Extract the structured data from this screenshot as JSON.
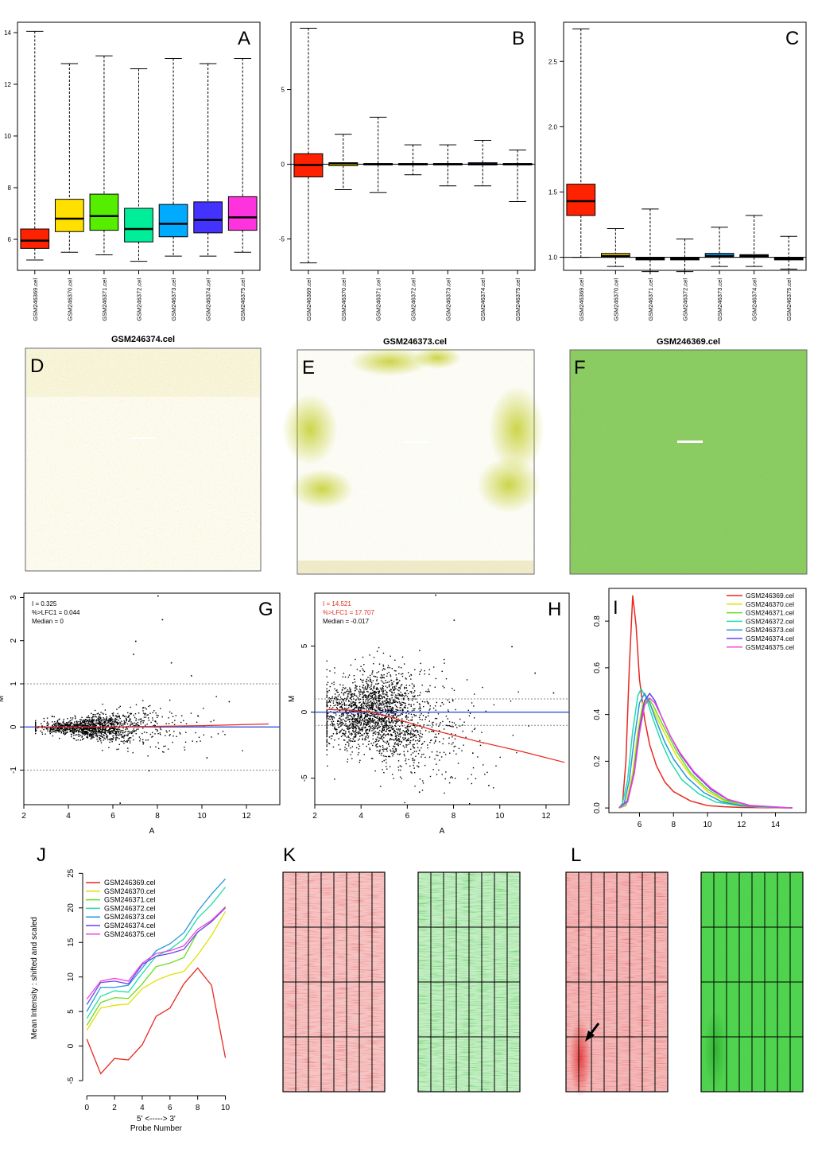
{
  "samples": [
    "GSM246369.cel",
    "GSM246370.cel",
    "GSM246371.cel",
    "GSM246372.cel",
    "GSM246373.cel",
    "GSM246374.cel",
    "GSM246375.cel"
  ],
  "colors": {
    "box": [
      "#ff2200",
      "#ffe000",
      "#55ee00",
      "#00ee99",
      "#00aaff",
      "#4433ff",
      "#ff33dd"
    ],
    "density": [
      "#e8281e",
      "#e0e000",
      "#66dd22",
      "#22ddaa",
      "#2299dd",
      "#6644ee",
      "#ee44dd"
    ],
    "axis": "#000000",
    "lowess": "#e8281e",
    "ref_line": "#2244dd"
  },
  "chart_data": [
    {
      "panel": "A",
      "type": "box",
      "ylim": [
        4.8,
        14.4
      ],
      "yticks": [
        6,
        8,
        10,
        12,
        14
      ],
      "boxes": [
        {
          "min": 5.2,
          "q1": 5.65,
          "median": 5.95,
          "q3": 6.4,
          "max": 14.05
        },
        {
          "min": 5.5,
          "q1": 6.3,
          "median": 6.8,
          "q3": 7.55,
          "max": 12.8
        },
        {
          "min": 5.4,
          "q1": 6.35,
          "median": 6.9,
          "q3": 7.75,
          "max": 13.1
        },
        {
          "min": 5.15,
          "q1": 5.9,
          "median": 6.4,
          "q3": 7.2,
          "max": 12.6
        },
        {
          "min": 5.35,
          "q1": 6.1,
          "median": 6.6,
          "q3": 7.35,
          "max": 13.0
        },
        {
          "min": 5.35,
          "q1": 6.25,
          "median": 6.75,
          "q3": 7.45,
          "max": 12.8
        },
        {
          "min": 5.5,
          "q1": 6.35,
          "median": 6.85,
          "q3": 7.65,
          "max": 13.0
        }
      ]
    },
    {
      "panel": "B",
      "type": "box",
      "ylim": [
        -7.1,
        9.5
      ],
      "yticks": [
        -5,
        0,
        5
      ],
      "ref_line": 0,
      "boxes": [
        {
          "min": -6.6,
          "q1": -0.85,
          "median": -0.05,
          "q3": 0.7,
          "max": 9.1
        },
        {
          "min": -1.7,
          "q1": -0.1,
          "median": 0.05,
          "q3": 0.1,
          "max": 2.0
        },
        {
          "min": -1.9,
          "q1": -0.05,
          "median": 0.0,
          "q3": 0.05,
          "max": 3.15
        },
        {
          "min": -0.7,
          "q1": -0.05,
          "median": 0.0,
          "q3": 0.05,
          "max": 1.3
        },
        {
          "min": -1.45,
          "q1": -0.05,
          "median": 0.0,
          "q3": 0.05,
          "max": 1.3
        },
        {
          "min": -1.45,
          "q1": -0.05,
          "median": 0.0,
          "q3": 0.1,
          "max": 1.6
        },
        {
          "min": -2.5,
          "q1": -0.05,
          "median": 0.0,
          "q3": 0.05,
          "max": 0.95
        }
      ]
    },
    {
      "panel": "C",
      "type": "box",
      "ylim": [
        0.9,
        2.8
      ],
      "yticks": [
        1.0,
        1.5,
        2.0,
        2.5
      ],
      "ytick_labels": [
        "1.0",
        "1.5",
        "2.0",
        "2.5"
      ],
      "ref_line": 1.0,
      "boxes": [
        {
          "min": 1.0,
          "q1": 1.32,
          "median": 1.43,
          "q3": 1.56,
          "max": 2.75
        },
        {
          "min": 0.93,
          "q1": 1.0,
          "median": 1.01,
          "q3": 1.03,
          "max": 1.22
        },
        {
          "min": 0.89,
          "q1": 0.98,
          "median": 0.99,
          "q3": 1.0,
          "max": 1.37
        },
        {
          "min": 0.89,
          "q1": 0.98,
          "median": 0.99,
          "q3": 1.0,
          "max": 1.14
        },
        {
          "min": 0.93,
          "q1": 1.0,
          "median": 1.01,
          "q3": 1.03,
          "max": 1.23
        },
        {
          "min": 0.93,
          "q1": 1.0,
          "median": 1.01,
          "q3": 1.02,
          "max": 1.32
        },
        {
          "min": 0.91,
          "q1": 0.98,
          "median": 0.99,
          "q3": 1.0,
          "max": 1.16
        }
      ]
    },
    {
      "panel": "G",
      "type": "scatter",
      "xlabel": "A",
      "ylabel": "M",
      "xlim": [
        2,
        13.5
      ],
      "ylim": [
        -1.8,
        3.1
      ],
      "xticks": [
        2,
        4,
        6,
        8,
        10,
        12
      ],
      "yticks": [
        -1,
        0,
        1,
        2,
        3
      ],
      "hlines": [
        -1,
        1
      ],
      "ref_line": 0,
      "stats": [
        "I = 0.325",
        "%>LFC1 = 0.044",
        "Median = 0"
      ],
      "loess": [
        [
          2.5,
          0.0
        ],
        [
          6,
          0.0
        ],
        [
          10,
          0.03
        ],
        [
          13,
          0.07
        ]
      ],
      "cloud": {
        "x_center": 5,
        "spread": 0.08,
        "n": 1400
      },
      "outliers": [
        [
          8,
          3.05
        ],
        [
          8.2,
          2.5
        ],
        [
          7,
          2.0
        ],
        [
          6.9,
          1.7
        ],
        [
          6.3,
          -1.75
        ],
        [
          8.6,
          1.5
        ],
        [
          11.2,
          0.6
        ],
        [
          10.2,
          -0.7
        ],
        [
          7.6,
          -1.0
        ],
        [
          9.5,
          1.2
        ]
      ]
    },
    {
      "panel": "H",
      "type": "scatter",
      "xlabel": "A",
      "ylabel": "M",
      "xlim": [
        2,
        13
      ],
      "ylim": [
        -7,
        9
      ],
      "xticks": [
        2,
        4,
        6,
        8,
        10,
        12
      ],
      "yticks": [
        -5,
        0,
        5
      ],
      "hlines": [
        -1,
        1
      ],
      "ref_line": 0,
      "stats": [
        "I = 14.521",
        "%>LFC1 = 17.707",
        "Median = -0.017"
      ],
      "loess": [
        [
          2.5,
          0.2
        ],
        [
          3.5,
          0.15
        ],
        [
          4.5,
          0.0
        ],
        [
          5.5,
          -0.5
        ],
        [
          7,
          -1.3
        ],
        [
          9,
          -2.2
        ],
        [
          11,
          -3.0
        ],
        [
          12.8,
          -3.8
        ]
      ],
      "cloud": {
        "x_center": 4.5,
        "spread": 1.4,
        "n": 2200
      },
      "outliers": [
        [
          7.2,
          8.9
        ],
        [
          10.5,
          5.0
        ],
        [
          11.5,
          3.0
        ],
        [
          9.5,
          -5.5
        ],
        [
          12.3,
          1.5
        ],
        [
          8,
          7.0
        ],
        [
          6.5,
          -6.0
        ]
      ]
    },
    {
      "panel": "I",
      "type": "line",
      "subtype": "density",
      "xlim": [
        4.2,
        15.8
      ],
      "ylim": [
        -0.02,
        0.94
      ],
      "xticks": [
        6,
        8,
        10,
        12,
        14
      ],
      "yticks": [
        0.0,
        0.2,
        0.4,
        0.6,
        0.8
      ],
      "ytick_labels": [
        "0.0",
        "0.2",
        "0.4",
        "0.6",
        "0.8"
      ],
      "series": [
        {
          "name": "GSM246369.cel",
          "x": [
            4.8,
            5.0,
            5.2,
            5.4,
            5.6,
            5.8,
            6.0,
            6.3,
            6.6,
            7.0,
            7.5,
            8,
            9,
            10,
            11,
            12,
            15
          ],
          "y": [
            0,
            0.02,
            0.2,
            0.6,
            0.91,
            0.78,
            0.55,
            0.38,
            0.27,
            0.18,
            0.11,
            0.07,
            0.03,
            0.01,
            0.005,
            0.002,
            0
          ]
        },
        {
          "name": "GSM246370.cel",
          "x": [
            4.8,
            5.2,
            5.6,
            5.9,
            6.2,
            6.5,
            6.8,
            7.2,
            7.7,
            8.2,
            9,
            10,
            11,
            12,
            13,
            15
          ],
          "y": [
            0,
            0.02,
            0.15,
            0.33,
            0.45,
            0.46,
            0.42,
            0.36,
            0.29,
            0.22,
            0.14,
            0.07,
            0.03,
            0.012,
            0.004,
            0
          ]
        },
        {
          "name": "GSM246371.cel",
          "x": [
            4.8,
            5.2,
            5.6,
            5.9,
            6.2,
            6.5,
            6.8,
            7.2,
            7.7,
            8.2,
            9,
            10,
            11,
            12,
            13,
            15
          ],
          "y": [
            0,
            0.01,
            0.12,
            0.3,
            0.44,
            0.47,
            0.44,
            0.38,
            0.31,
            0.24,
            0.15,
            0.08,
            0.035,
            0.013,
            0.005,
            0
          ]
        },
        {
          "name": "GSM246372.cel",
          "x": [
            4.8,
            5.0,
            5.3,
            5.6,
            5.9,
            6.1,
            6.4,
            6.8,
            7.3,
            7.8,
            8.5,
            9.5,
            10.5,
            12,
            15
          ],
          "y": [
            0,
            0.02,
            0.12,
            0.33,
            0.48,
            0.51,
            0.47,
            0.38,
            0.28,
            0.2,
            0.12,
            0.06,
            0.025,
            0.008,
            0
          ]
        },
        {
          "name": "GSM246373.cel",
          "x": [
            4.8,
            5.1,
            5.4,
            5.7,
            6.0,
            6.3,
            6.6,
            7.0,
            7.5,
            8.0,
            8.8,
            9.8,
            10.8,
            12,
            15
          ],
          "y": [
            0,
            0.02,
            0.12,
            0.3,
            0.45,
            0.49,
            0.45,
            0.37,
            0.28,
            0.21,
            0.13,
            0.065,
            0.028,
            0.009,
            0
          ]
        },
        {
          "name": "GSM246374.cel",
          "x": [
            4.8,
            5.3,
            5.7,
            6.0,
            6.3,
            6.6,
            6.9,
            7.3,
            7.8,
            8.4,
            9.2,
            10.2,
            11.2,
            12.5,
            15
          ],
          "y": [
            0,
            0.03,
            0.16,
            0.34,
            0.46,
            0.49,
            0.46,
            0.39,
            0.31,
            0.23,
            0.15,
            0.08,
            0.035,
            0.01,
            0
          ]
        },
        {
          "name": "GSM246375.cel",
          "x": [
            4.8,
            5.3,
            5.7,
            6.0,
            6.3,
            6.6,
            6.9,
            7.3,
            7.8,
            8.4,
            9.2,
            10.2,
            11.2,
            12.5,
            15
          ],
          "y": [
            0,
            0.025,
            0.15,
            0.32,
            0.44,
            0.47,
            0.45,
            0.39,
            0.31,
            0.235,
            0.155,
            0.085,
            0.037,
            0.011,
            0
          ]
        }
      ]
    },
    {
      "panel": "J",
      "type": "line",
      "xlabel": "5' <-----> 3'\nProbe Number",
      "ylabel": "Mean Intensity : shifted and scaled",
      "xlim": [
        -0.3,
        10.6
      ],
      "ylim": [
        -5.8,
        25.5
      ],
      "xticks": [
        0,
        2,
        4,
        6,
        8,
        10
      ],
      "yticks": [
        -5,
        0,
        5,
        10,
        15,
        20,
        25
      ],
      "x": [
        0,
        1,
        2,
        3,
        4,
        5,
        6,
        7,
        8,
        9,
        10
      ],
      "series": [
        {
          "name": "GSM246369.cel",
          "values": [
            1,
            -4,
            -1.8,
            -2,
            0.2,
            4.3,
            5.5,
            9,
            11.3,
            8.8,
            -1.7
          ]
        },
        {
          "name": "GSM246370.cel",
          "values": [
            2.3,
            5.5,
            5.9,
            6.1,
            8.3,
            9.5,
            10.3,
            10.8,
            13.2,
            16,
            19.5
          ]
        },
        {
          "name": "GSM246371.cel",
          "values": [
            3,
            6.3,
            7,
            6.9,
            9,
            11.5,
            12,
            12.8,
            16.5,
            18,
            20.2
          ]
        },
        {
          "name": "GSM246372.cel",
          "values": [
            4,
            7.2,
            8,
            7.8,
            10.5,
            13,
            14,
            15.5,
            18.5,
            20.5,
            23
          ]
        },
        {
          "name": "GSM246373.cel",
          "values": [
            5,
            8.5,
            8.5,
            8.8,
            11.3,
            13.8,
            14.8,
            16.4,
            19.5,
            22,
            24.2
          ]
        },
        {
          "name": "GSM246374.cel",
          "values": [
            6,
            9.2,
            9.4,
            9.0,
            11.8,
            13,
            13.4,
            14,
            16.5,
            18,
            20
          ]
        },
        {
          "name": "GSM246375.cel",
          "values": [
            6.8,
            9.4,
            9.8,
            9.4,
            12,
            13.4,
            13.8,
            14.5,
            16.9,
            18.2,
            20.1
          ]
        }
      ]
    }
  ],
  "images": [
    {
      "panel": "D",
      "title": "GSM246374.cel",
      "type": "pseudo-image"
    },
    {
      "panel": "E",
      "title": "GSM246373.cel",
      "type": "pseudo-image"
    },
    {
      "panel": "F",
      "title": "GSM246369.cel",
      "type": "pseudo-image"
    },
    {
      "panel": "K",
      "type": "residual-image"
    },
    {
      "panel": "L",
      "type": "residual-image"
    }
  ],
  "panel_letters": [
    "A",
    "B",
    "C",
    "D",
    "E",
    "F",
    "G",
    "H",
    "I",
    "J",
    "K",
    "L"
  ]
}
